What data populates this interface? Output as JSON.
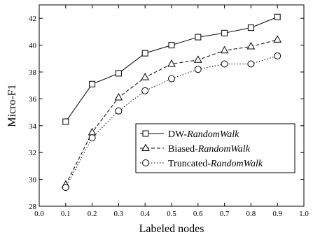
{
  "chart_data": {
    "type": "line",
    "xlabel": "Labeled nodes",
    "ylabel": "Micro-F1",
    "xlim": [
      0.0,
      1.0
    ],
    "ylim": [
      28,
      43
    ],
    "xticks": [
      "0.0",
      "0.1",
      "0.2",
      "0.3",
      "0.4",
      "0.5",
      "0.6",
      "0.7",
      "0.8",
      "0.9",
      "1.0"
    ],
    "yticks": [
      "28",
      "30",
      "32",
      "34",
      "36",
      "38",
      "40",
      "42"
    ],
    "grid": false,
    "legend_position": "lower-right",
    "x": [
      0.1,
      0.2,
      0.3,
      0.4,
      0.5,
      0.6,
      0.7,
      0.8,
      0.9
    ],
    "series": [
      {
        "name_plain": "DW-",
        "name_italic": "RandomWalk",
        "marker": "square",
        "line_style": "solid",
        "values": [
          34.3,
          37.1,
          37.9,
          39.4,
          40.0,
          40.6,
          40.9,
          41.3,
          42.1
        ]
      },
      {
        "name_plain": "Biased-",
        "name_italic": "RandomWalk",
        "marker": "triangle",
        "line_style": "dashed",
        "values": [
          29.6,
          33.5,
          36.1,
          37.6,
          38.6,
          38.9,
          39.6,
          39.9,
          40.4
        ]
      },
      {
        "name_plain": "Truncated-",
        "name_italic": "RandomWalk",
        "marker": "circle",
        "line_style": "dotted",
        "values": [
          29.4,
          33.1,
          35.1,
          36.6,
          37.5,
          38.2,
          38.6,
          38.6,
          39.2
        ]
      }
    ]
  }
}
